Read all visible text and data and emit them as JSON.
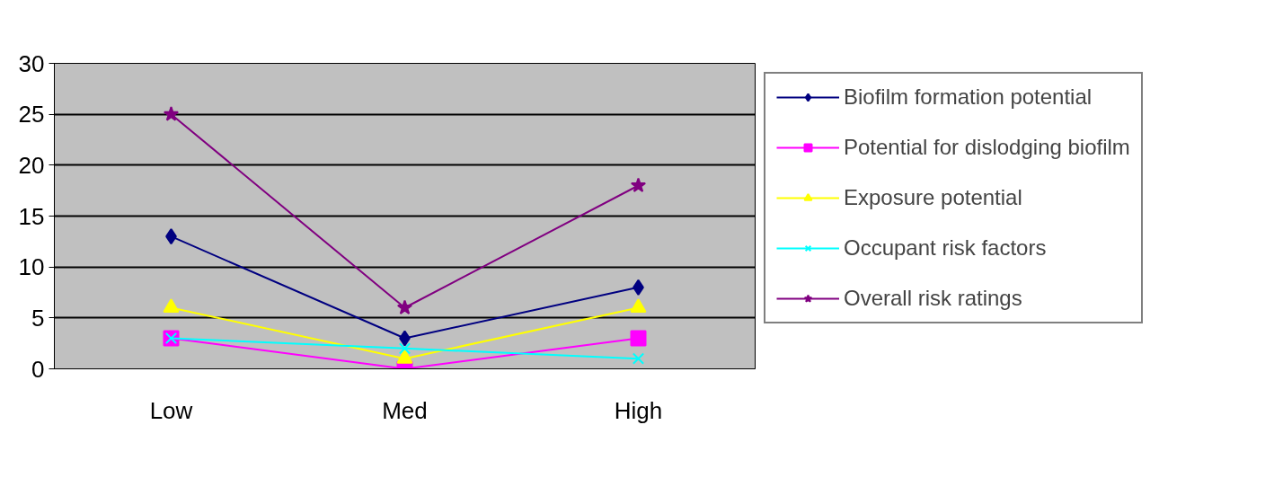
{
  "chart_data": {
    "type": "line",
    "categories": [
      "Low",
      "Med",
      "High"
    ],
    "ylim": [
      0,
      30
    ],
    "yticks": [
      0,
      5,
      10,
      15,
      20,
      25,
      30
    ],
    "grid": "y",
    "legend": "right",
    "series": [
      {
        "name": "Biofilm formation potential",
        "color": "#000080",
        "marker": "diamond",
        "values": [
          13,
          3,
          8
        ]
      },
      {
        "name": "Potential for dislodging biofilm",
        "color": "#ff00ff",
        "marker": "square",
        "values": [
          3,
          0,
          3
        ]
      },
      {
        "name": "Exposure potential",
        "color": "#ffff00",
        "marker": "triangle",
        "values": [
          6,
          1,
          6
        ]
      },
      {
        "name": "Occupant risk factors",
        "color": "#00ffff",
        "marker": "cross",
        "values": [
          3,
          2,
          1
        ]
      },
      {
        "name": "Overall risk ratings",
        "color": "#800080",
        "marker": "star",
        "values": [
          25,
          6,
          18
        ]
      }
    ]
  }
}
